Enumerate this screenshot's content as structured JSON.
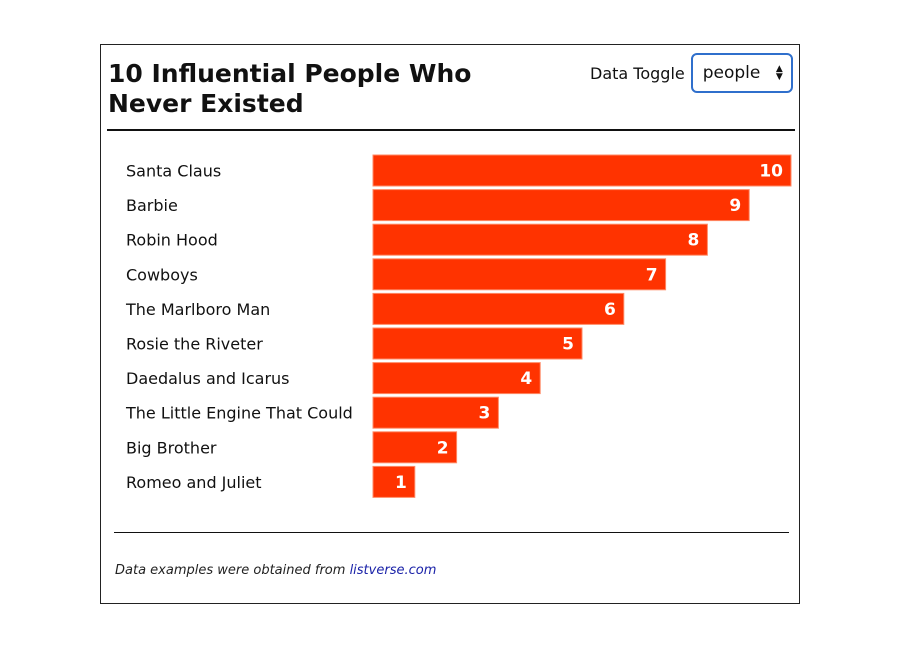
{
  "header": {
    "title": "10 Influential People Who Never Existed",
    "toggle_label": "Data Toggle",
    "toggle_value": "people"
  },
  "footer": {
    "text": "Data examples were obtained from",
    "link_text": "listverse.com"
  },
  "chart_data": {
    "type": "bar",
    "orientation": "horizontal",
    "categories": [
      "Santa Claus",
      "Barbie",
      "Robin Hood",
      "Cowboys",
      "The Marlboro Man",
      "Rosie the Riveter",
      "Daedalus and Icarus",
      "The Little Engine That Could",
      "Big Brother",
      "Romeo and Juliet"
    ],
    "values": [
      10,
      9,
      8,
      7,
      6,
      5,
      4,
      3,
      2,
      1
    ],
    "bar_color": "#ff3300",
    "xlim": [
      0,
      10
    ],
    "data_labels": true,
    "grid": false
  }
}
